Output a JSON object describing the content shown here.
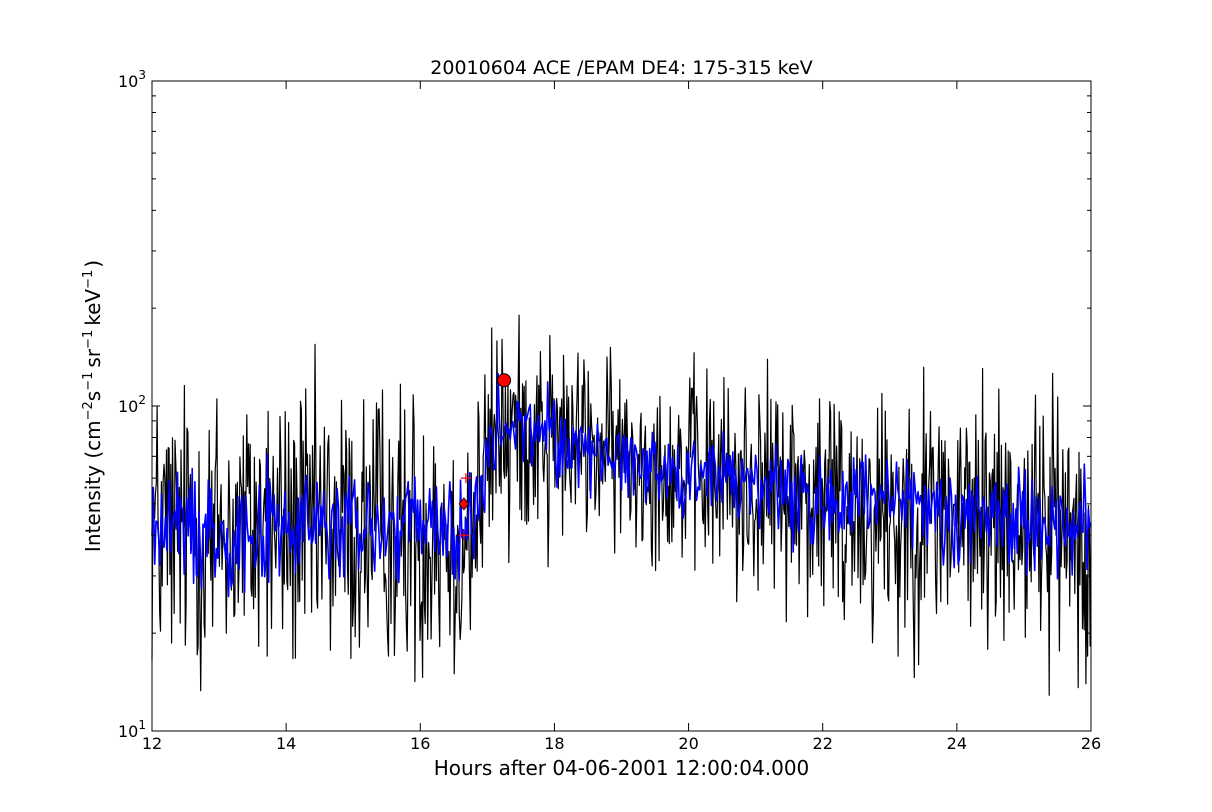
{
  "chart_data": {
    "type": "line",
    "title": "20010604 ACE /EPAM DE4: 175-315 keV",
    "xlabel": "Hours after 04-06-2001 12:00:04.000",
    "ylabel": {
      "text_before_sup1": "Intensity (cm",
      "sup1": "−2",
      "text_s": "s",
      "sup2": "−1",
      "text_sr": "sr",
      "sup3": "−1",
      "text_kev": "keV",
      "sup4": "−1",
      "text_close": ")"
    },
    "xlim": [
      12,
      26
    ],
    "ylim": [
      10,
      1000
    ],
    "yscale": "log",
    "grid": false,
    "xticks": [
      12,
      14,
      16,
      18,
      20,
      22,
      24,
      26
    ],
    "xtick_labels": [
      "12",
      "14",
      "16",
      "18",
      "20",
      "22",
      "24",
      "26"
    ],
    "yticks": [
      10,
      100,
      1000
    ],
    "ytick_labels": {
      "base": "10",
      "exponents": [
        "1",
        "2",
        "3"
      ]
    },
    "series": [
      {
        "style": "raw",
        "color": "#000000",
        "segments": [
          {
            "x_start": 12.0,
            "x_end": 16.8,
            "level": 42,
            "spread": 0.22
          },
          {
            "x_start": 16.8,
            "x_end": 17.2,
            "level_start": 42,
            "level_end": 90,
            "spread": 0.18
          },
          {
            "x_start": 17.2,
            "x_end": 18.0,
            "level": 85,
            "spread": 0.15
          },
          {
            "x_start": 18.0,
            "x_end": 20.0,
            "level_start": 78,
            "level_end": 62,
            "spread": 0.14
          },
          {
            "x_start": 20.0,
            "x_end": 21.5,
            "level_start": 62,
            "level_end": 55,
            "spread": 0.16
          },
          {
            "x_start": 21.5,
            "x_end": 26.0,
            "level_start": 52,
            "level_end": 43,
            "spread": 0.2
          }
        ],
        "spikes_low": [
          {
            "x": 12.12,
            "y": 23
          },
          {
            "x": 12.33,
            "y": 23
          },
          {
            "x": 12.9,
            "y": 21
          },
          {
            "x": 13.72,
            "y": 17
          },
          {
            "x": 14.28,
            "y": 23
          },
          {
            "x": 14.99,
            "y": 21
          },
          {
            "x": 15.52,
            "y": 17
          },
          {
            "x": 15.79,
            "y": 21
          },
          {
            "x": 16.0,
            "y": 19
          },
          {
            "x": 16.5,
            "y": 15
          },
          {
            "x": 17.32,
            "y": 33
          },
          {
            "x": 17.9,
            "y": 32
          },
          {
            "x": 20.72,
            "y": 25
          },
          {
            "x": 22.3,
            "y": 25
          },
          {
            "x": 23.12,
            "y": 17
          },
          {
            "x": 24.2,
            "y": 21
          },
          {
            "x": 24.7,
            "y": 19
          },
          {
            "x": 25.95,
            "y": 17
          }
        ],
        "spikes_high": [
          {
            "x": 13.7,
            "y": 74
          },
          {
            "x": 16.2,
            "y": 75
          },
          {
            "x": 17.4,
            "y": 110
          },
          {
            "x": 18.45,
            "y": 115
          },
          {
            "x": 21.3,
            "y": 103
          },
          {
            "x": 23.8,
            "y": 72
          },
          {
            "x": 24.6,
            "y": 72
          }
        ]
      },
      {
        "style": "smoothed",
        "color": "#0000ff",
        "segments": [
          {
            "x_start": 12.0,
            "x_end": 16.8,
            "level": 42,
            "spread": 0.09
          },
          {
            "x_start": 16.8,
            "x_end": 17.2,
            "level_start": 42,
            "level_end": 88,
            "spread": 0.07
          },
          {
            "x_start": 17.2,
            "x_end": 18.0,
            "level": 85,
            "spread": 0.06
          },
          {
            "x_start": 18.0,
            "x_end": 20.0,
            "level_start": 77,
            "level_end": 62,
            "spread": 0.06
          },
          {
            "x_start": 20.0,
            "x_end": 21.5,
            "level_start": 62,
            "level_end": 55,
            "spread": 0.07
          },
          {
            "x_start": 21.5,
            "x_end": 26.0,
            "level_start": 52,
            "level_end": 43,
            "spread": 0.08
          }
        ]
      }
    ],
    "markers": [
      {
        "kind": "circle",
        "x": 17.25,
        "y": 120,
        "color": "#ff0000"
      },
      {
        "kind": "diamond",
        "x": 16.65,
        "y": 50,
        "color": "#ff0000"
      },
      {
        "kind": "plus",
        "x": 16.65,
        "y": 40,
        "color": "#ff0000"
      },
      {
        "kind": "plus",
        "x": 16.68,
        "y": 60,
        "color": "#ff0000"
      }
    ]
  }
}
